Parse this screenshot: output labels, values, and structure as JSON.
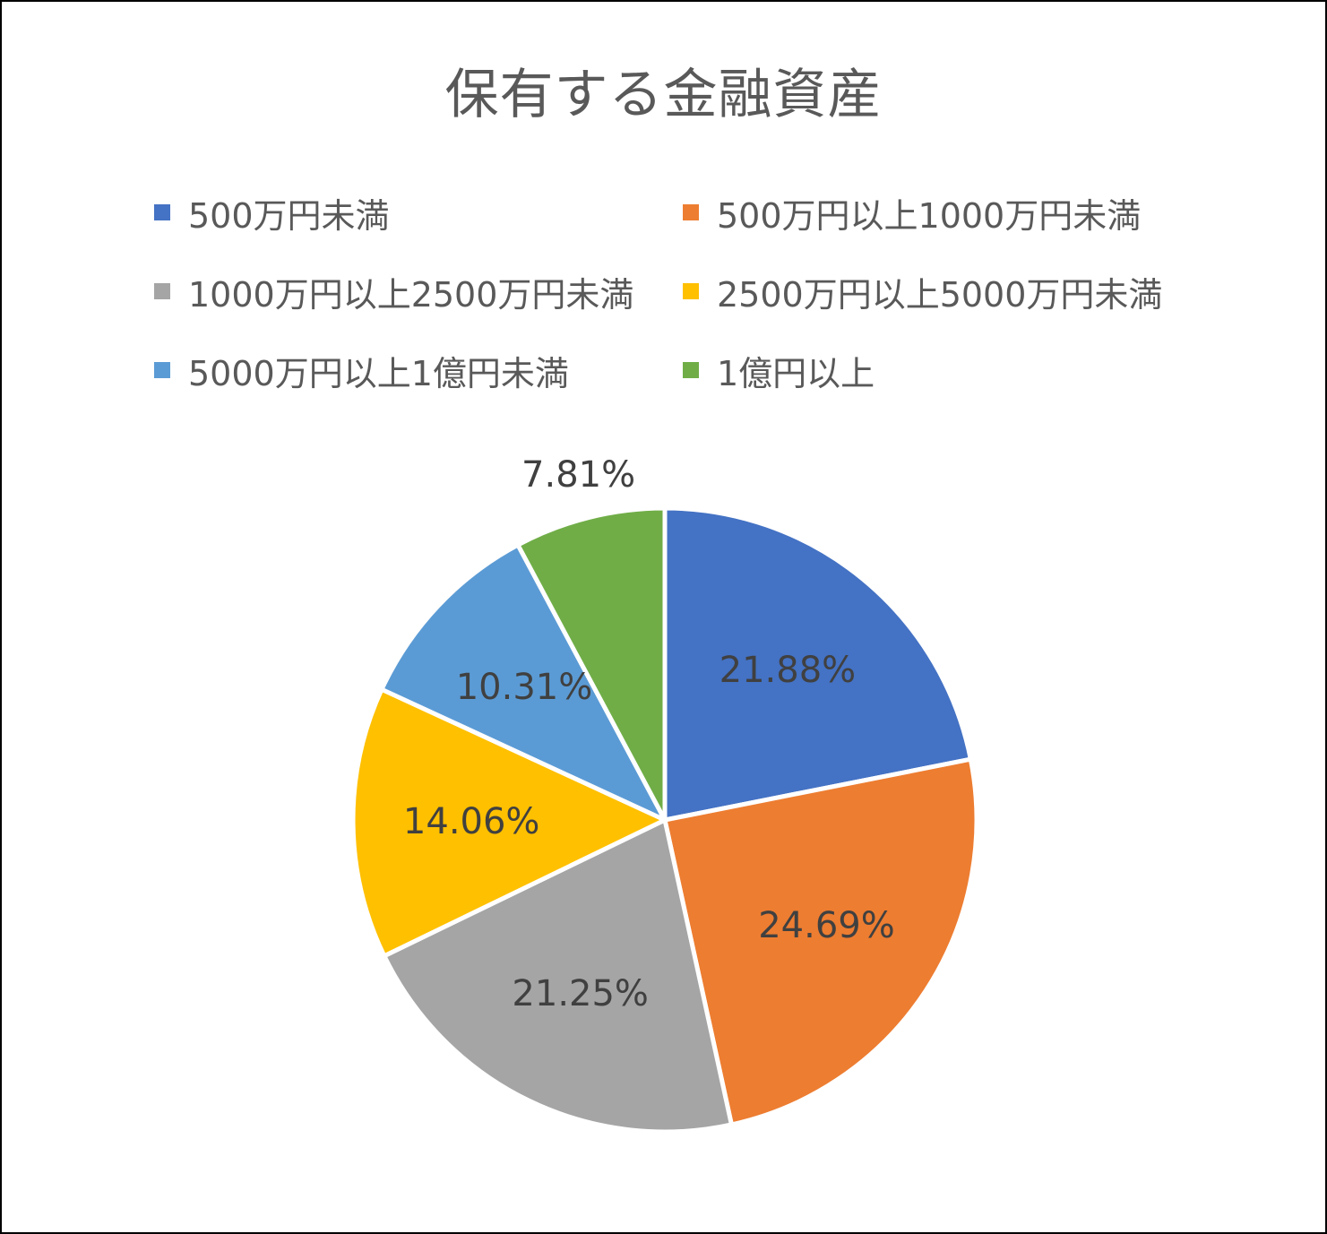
{
  "chart_data": {
    "type": "pie",
    "title": "保有する金融資産",
    "legend_position": "top",
    "categories": [
      "500万円未満",
      "500万円以上1000万円未満",
      "1000万円以上2500万円未満",
      "2500万円以上5000万円未満",
      "5000万円以上1億円未満",
      "1億円以上"
    ],
    "values": [
      21.88,
      24.69,
      21.25,
      14.06,
      10.31,
      7.81
    ],
    "data_labels": [
      "21.88%",
      "24.69%",
      "21.25%",
      "14.06%",
      "10.31%",
      "7.81%"
    ],
    "colors": [
      "#4472C4",
      "#ED7D31",
      "#A5A5A5",
      "#FFC000",
      "#5B9BD5",
      "#70AD47"
    ]
  }
}
